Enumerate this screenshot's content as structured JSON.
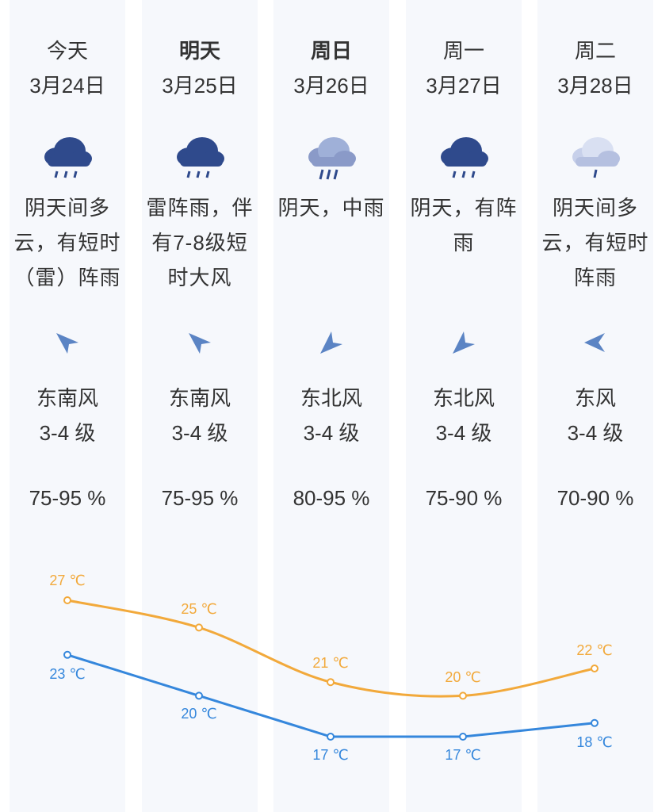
{
  "days": [
    {
      "day": "今天",
      "bold": false,
      "date": "3月24日",
      "icon": "thunder-rain-cloud-icon",
      "desc": [
        "阴天间多",
        "云，有短时",
        "（雷）阵雨"
      ],
      "wind_dir": "东南风",
      "wind_level": "3-4 级",
      "wind_arrow": "arrow-icon-southeast",
      "humidity": "75-95 %",
      "high": "27 ℃",
      "low": "23 ℃",
      "high_val": 27,
      "low_val": 23
    },
    {
      "day": "明天",
      "bold": true,
      "date": "3月25日",
      "icon": "thunder-rain-cloud-icon",
      "desc": [
        "雷阵雨，伴",
        "有7-8级短",
        "时大风"
      ],
      "wind_dir": "东南风",
      "wind_level": "3-4 级",
      "wind_arrow": "arrow-icon-southeast",
      "humidity": "75-95 %",
      "high": "25 ℃",
      "low": "20 ℃",
      "high_val": 25,
      "low_val": 20
    },
    {
      "day": "周日",
      "bold": true,
      "date": "3月26日",
      "icon": "moderate-rain-cloud-icon",
      "desc": [
        "阴天，中雨"
      ],
      "wind_dir": "东北风",
      "wind_level": "3-4 级",
      "wind_arrow": "arrow-icon-northeast",
      "humidity": "80-95 %",
      "high": "21 ℃",
      "low": "17 ℃",
      "high_val": 21,
      "low_val": 17
    },
    {
      "day": "周一",
      "bold": false,
      "date": "3月27日",
      "icon": "shower-cloud-icon",
      "desc": [
        "阴天，有阵",
        "雨"
      ],
      "wind_dir": "东北风",
      "wind_level": "3-4 级",
      "wind_arrow": "arrow-icon-northeast",
      "humidity": "75-90 %",
      "high": "20 ℃",
      "low": "17 ℃",
      "high_val": 20,
      "low_val": 17
    },
    {
      "day": "周二",
      "bold": false,
      "date": "3月28日",
      "icon": "light-rain-cloud-icon",
      "desc": [
        "阴天间多",
        "云，有短时",
        "阵雨"
      ],
      "wind_dir": "东风",
      "wind_level": "3-4 级",
      "wind_arrow": "arrow-icon-east",
      "humidity": "70-90 %",
      "high": "22 ℃",
      "low": "18 ℃",
      "high_val": 22,
      "low_val": 18
    }
  ],
  "colors": {
    "high": "#f2a93b",
    "low": "#3587dc",
    "column_bg": "#f6f8fc",
    "text": "#333333",
    "cloud_dark": "#2f4a8c",
    "cloud_light": "#9fb0d8",
    "arrow": "#5b84c4"
  }
}
